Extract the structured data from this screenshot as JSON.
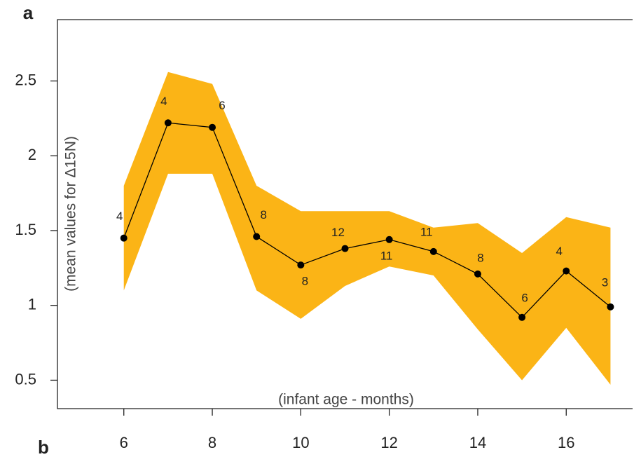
{
  "chart_data": {
    "type": "line",
    "panel_labels": [
      "a",
      "b"
    ],
    "xlabel": "(infant age - months)",
    "ylabel": "(mean values for  Δ15N)",
    "x": [
      6,
      7,
      8,
      9,
      10,
      11,
      12,
      13,
      14,
      15,
      16,
      17
    ],
    "series": [
      {
        "color": "#000000",
        "values": [
          1.45,
          2.22,
          2.19,
          1.46,
          1.27,
          1.38,
          1.44,
          1.36,
          1.21,
          0.92,
          1.23,
          0.99
        ]
      }
    ],
    "band": {
      "color": "#fbb416",
      "upper": [
        1.8,
        2.56,
        2.48,
        1.8,
        1.63,
        1.63,
        1.63,
        1.52,
        1.55,
        1.35,
        1.59,
        1.52
      ],
      "lower": [
        1.1,
        1.88,
        1.88,
        1.1,
        0.91,
        1.13,
        1.26,
        1.2,
        0.84,
        0.5,
        0.85,
        0.47
      ]
    },
    "n": [
      4,
      4,
      6,
      8,
      8,
      12,
      11,
      11,
      8,
      6,
      4,
      3
    ],
    "xlim": [
      4.5,
      17.5
    ],
    "xticks": [
      6,
      8,
      10,
      12,
      14,
      16
    ],
    "ylim": [
      0.31,
      2.91
    ],
    "yticks": [
      0.5,
      1.0,
      1.5,
      2.0,
      2.5
    ]
  }
}
